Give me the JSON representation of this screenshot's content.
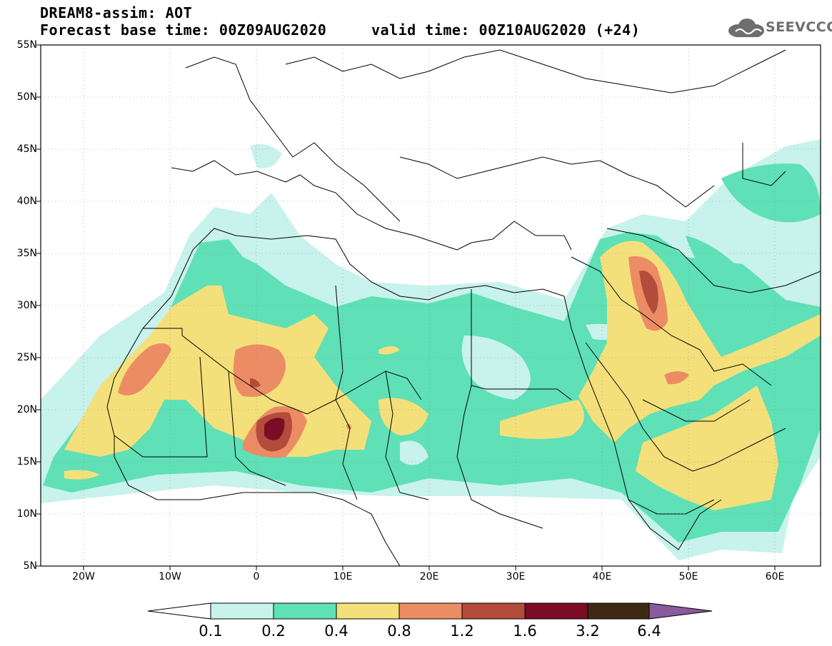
{
  "header": {
    "title_line1": "DREAM8-assim: AOT",
    "title_line2": "Forecast base time: 00Z09AUG2020     valid time: 00Z10AUG2020 (+24)",
    "logo_text": "SEEVCCC"
  },
  "map": {
    "lon_range": [
      -25,
      65
    ],
    "lat_range": [
      5,
      55
    ],
    "lat_ticks": [
      "55N",
      "50N",
      "45N",
      "40N",
      "35N",
      "30N",
      "25N",
      "20N",
      "15N",
      "10N",
      "5N"
    ],
    "lon_ticks": [
      "20W",
      "10W",
      "0",
      "10E",
      "20E",
      "30E",
      "40E",
      "50E",
      "60E"
    ]
  },
  "legend": {
    "levels": [
      "0.1",
      "0.2",
      "0.4",
      "0.8",
      "1.2",
      "1.6",
      "3.2",
      "6.4"
    ],
    "colors": [
      "#c8f2ec",
      "#5fe0b6",
      "#f4e07a",
      "#ec8c64",
      "#b44c3c",
      "#7a0c26",
      "#3e2a14",
      "#8a5a9c"
    ],
    "under_color": "#ffffff"
  }
}
